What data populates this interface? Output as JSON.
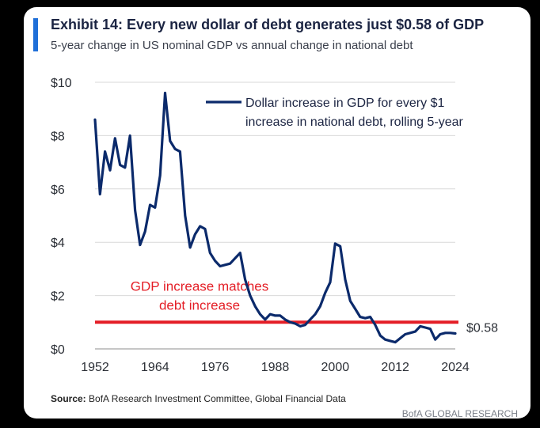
{
  "header": {
    "title": "Exhibit 14: Every new dollar of debt generates just $0.58 of GDP",
    "subtitle": "5-year change in US nominal GDP vs annual change in national debt"
  },
  "footer": {
    "source_label": "Source:",
    "source_text": " BofA Research Investment Committee, Global Financial Data",
    "brand": "BofA GLOBAL RESEARCH"
  },
  "colors": {
    "series": "#0b2a6b",
    "reference": "#e41e26",
    "accent": "#1f6fd8",
    "grid": "#d9d9d9"
  },
  "chart_data": {
    "type": "line",
    "title": "Exhibit 14: Every new dollar of debt generates just $0.58 of GDP",
    "subtitle": "5-year change in US nominal GDP vs annual change in national debt",
    "xlabel": "",
    "ylabel": "",
    "xlim": [
      1952,
      2024
    ],
    "ylim": [
      0,
      10
    ],
    "x_ticks": [
      1952,
      1964,
      1976,
      1988,
      2000,
      2012,
      2024
    ],
    "y_ticks": [
      {
        "value": 0,
        "label": "$0"
      },
      {
        "value": 2,
        "label": "$2"
      },
      {
        "value": 4,
        "label": "$4"
      },
      {
        "value": 6,
        "label": "$6"
      },
      {
        "value": 8,
        "label": "$8"
      },
      {
        "value": 10,
        "label": "$10"
      }
    ],
    "grid": "horizontal",
    "legend_position": "top-right",
    "series": [
      {
        "name": "Dollar increase in GDP for every $1 increase in national debt, rolling 5-year",
        "legend_lines": [
          "Dollar increase in GDP for every $1",
          "increase in national debt, rolling 5-year"
        ],
        "x": [
          1952,
          1953,
          1954,
          1955,
          1956,
          1957,
          1958,
          1959,
          1960,
          1961,
          1962,
          1963,
          1964,
          1965,
          1966,
          1967,
          1968,
          1969,
          1970,
          1971,
          1972,
          1973,
          1974,
          1975,
          1976,
          1977,
          1978,
          1979,
          1980,
          1981,
          1982,
          1983,
          1984,
          1985,
          1986,
          1987,
          1988,
          1989,
          1990,
          1991,
          1992,
          1993,
          1994,
          1995,
          1996,
          1997,
          1998,
          1999,
          2000,
          2001,
          2002,
          2003,
          2004,
          2005,
          2006,
          2007,
          2008,
          2009,
          2010,
          2011,
          2012,
          2013,
          2014,
          2015,
          2016,
          2017,
          2018,
          2019,
          2020,
          2021,
          2022,
          2023,
          2024
        ],
        "y": [
          8.6,
          5.8,
          7.4,
          6.7,
          7.9,
          6.9,
          6.8,
          8.0,
          5.2,
          3.9,
          4.4,
          5.4,
          5.3,
          6.5,
          9.6,
          7.8,
          7.5,
          7.4,
          5.0,
          3.8,
          4.3,
          4.6,
          4.5,
          3.6,
          3.3,
          3.1,
          3.15,
          3.2,
          3.4,
          3.6,
          2.6,
          2.0,
          1.6,
          1.3,
          1.1,
          1.3,
          1.25,
          1.25,
          1.1,
          1.0,
          0.95,
          0.85,
          0.9,
          1.1,
          1.3,
          1.6,
          2.1,
          2.5,
          3.95,
          3.85,
          2.6,
          1.8,
          1.5,
          1.2,
          1.15,
          1.2,
          0.9,
          0.5,
          0.35,
          0.3,
          0.25,
          0.4,
          0.55,
          0.6,
          0.65,
          0.85,
          0.8,
          0.75,
          0.35,
          0.55,
          0.6,
          0.6,
          0.58
        ]
      }
    ],
    "reference_line": {
      "y": 1.0,
      "label_lines": [
        "GDP increase matches",
        "debt increase"
      ]
    },
    "end_label": "$0.58"
  }
}
